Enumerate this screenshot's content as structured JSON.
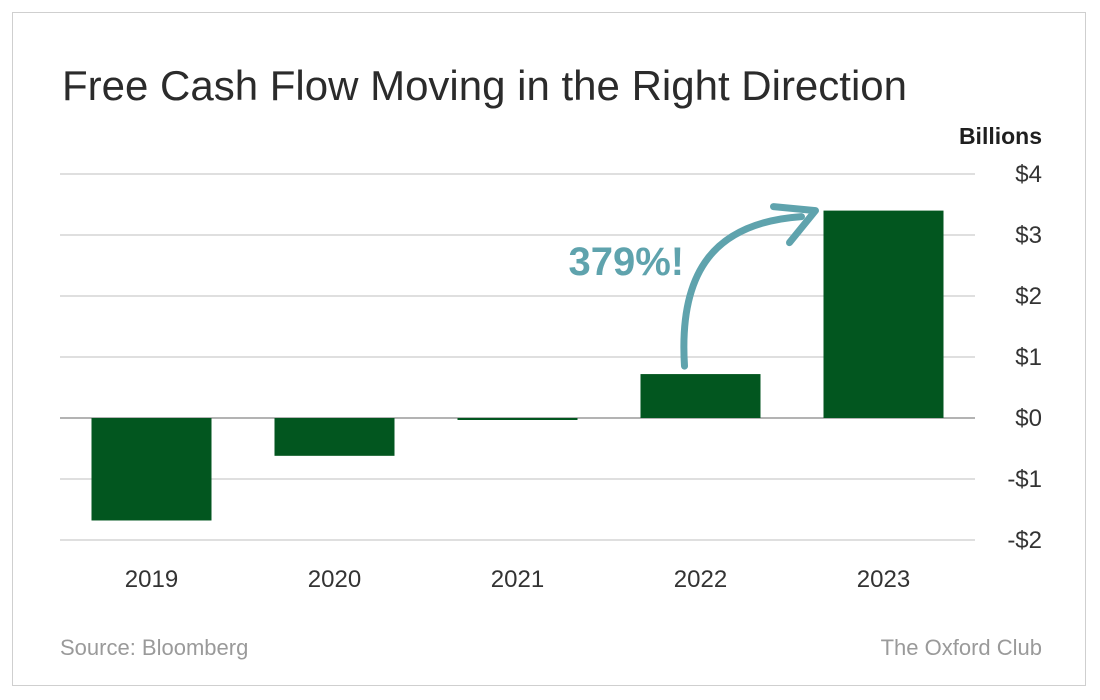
{
  "title": "Free Cash Flow Moving in the Right Direction",
  "unit_label": "Billions",
  "footer": {
    "source": "Source: Bloomberg",
    "brand": "The Oxford Club"
  },
  "colors": {
    "bar": "#02561f",
    "gridline": "#cccccc",
    "annotation": "#5fa3ad"
  },
  "chart_data": {
    "type": "bar",
    "title": "Free Cash Flow Moving in the Right Direction",
    "ylabel": "Billions",
    "xlabel": "",
    "categories": [
      "2019",
      "2020",
      "2021",
      "2022",
      "2023"
    ],
    "values": [
      -1.68,
      -0.62,
      -0.02,
      0.72,
      3.4
    ],
    "ylim": [
      -2,
      4
    ],
    "yticks": [
      {
        "value": 4,
        "label": "$4"
      },
      {
        "value": 3,
        "label": "$3"
      },
      {
        "value": 2,
        "label": "$2"
      },
      {
        "value": 1,
        "label": "$1"
      },
      {
        "value": 0,
        "label": "$0"
      },
      {
        "value": -1,
        "label": "-$1"
      },
      {
        "value": -2,
        "label": "-$2"
      }
    ],
    "grid": true,
    "y_axis_position": "right",
    "annotation": {
      "text": "379%!",
      "from_category": "2022",
      "to_category": "2023"
    }
  }
}
